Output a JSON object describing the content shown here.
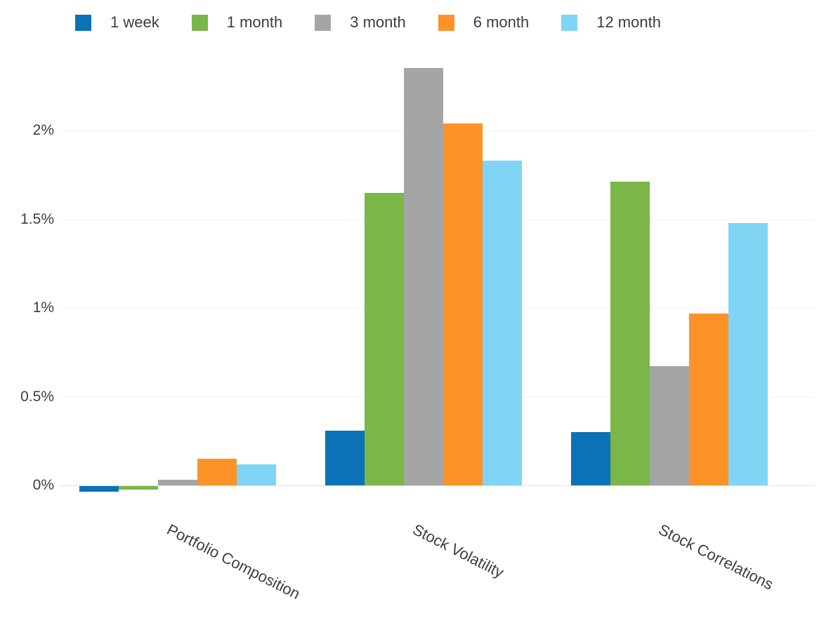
{
  "chart_data": {
    "type": "bar",
    "title": "",
    "xlabel": "",
    "ylabel": "",
    "categories": [
      "Portfolio Composition",
      "Stock Volatility",
      "Stock Correlations"
    ],
    "series": [
      {
        "name": "1 week",
        "color": "#0b72b7",
        "values": [
          -0.03,
          0.31,
          0.3
        ]
      },
      {
        "name": "1 month",
        "color": "#7ab648",
        "values": [
          -0.02,
          1.65,
          1.71
        ]
      },
      {
        "name": "3 month",
        "color": "#a5a5a5",
        "values": [
          0.03,
          2.35,
          0.67
        ]
      },
      {
        "name": "6 month",
        "color": "#fb9328",
        "values": [
          0.15,
          2.04,
          0.97
        ]
      },
      {
        "name": "12 month",
        "color": "#80d4f4",
        "values": [
          0.12,
          1.83,
          1.48
        ]
      }
    ],
    "yticks": [
      {
        "value": 0,
        "label": "0%"
      },
      {
        "value": 0.5,
        "label": "0.5%"
      },
      {
        "value": 1,
        "label": "1%"
      },
      {
        "value": 1.5,
        "label": "1.5%"
      },
      {
        "value": 2,
        "label": "2%"
      }
    ],
    "ylim": [
      -0.12,
      2.4
    ],
    "value_unit": "%",
    "grid": "horizontal-light",
    "legend_position": "top"
  },
  "colors": {
    "background": "#ffffff",
    "grid": "#f2f2f2",
    "axis_baseline": "#e2e2e2",
    "text": "#3f3f3f"
  }
}
